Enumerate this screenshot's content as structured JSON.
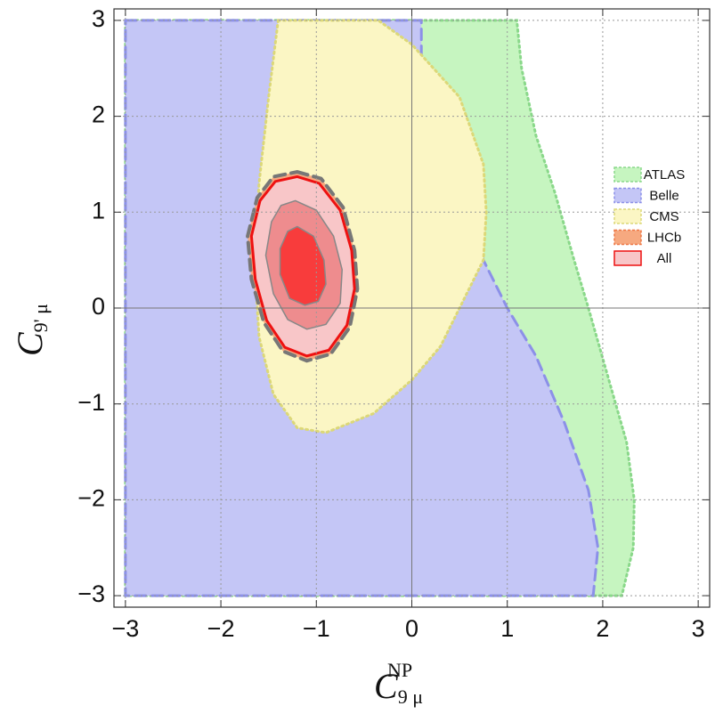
{
  "chart_data": {
    "type": "contour",
    "xlabel": {
      "main": "C",
      "sub": "9 μ",
      "sup": "NP"
    },
    "ylabel": {
      "main": "C",
      "sub": "9' μ"
    },
    "xlim": [
      -3.12,
      3.12
    ],
    "ylim": [
      -3.12,
      3.12
    ],
    "xticks": [
      {
        "value": -3,
        "label": "−3"
      },
      {
        "value": -2,
        "label": "−2"
      },
      {
        "value": -1,
        "label": "−1"
      },
      0,
      1,
      2,
      3
    ],
    "yticks": [
      {
        "value": -3,
        "label": "−3"
      },
      {
        "value": -2,
        "label": "−2"
      },
      {
        "value": -1,
        "label": "−1"
      },
      0,
      1,
      2,
      3
    ],
    "grid": true,
    "legend": "right",
    "series": [
      {
        "name": "ATLAS",
        "color": "#c6f5c0",
        "edge_color": "#8ad88a",
        "dash": "dotted",
        "x": [
          -3,
          1.1,
          1.15,
          1.3,
          1.5,
          1.7,
          1.85,
          2.05,
          2.25,
          2.33,
          2.32,
          2.2,
          -3
        ],
        "y": [
          3,
          3,
          2.5,
          1.8,
          1.2,
          0.5,
          0,
          -0.7,
          -1.4,
          -2,
          -2.5,
          -3,
          -3
        ]
      },
      {
        "name": "Belle",
        "color": "#c4c6f6",
        "edge_color": "#8c90e8",
        "dash": "dashed",
        "x": [
          -3,
          0.1,
          0.1,
          0.3,
          0.5,
          0.75,
          1,
          1.3,
          1.6,
          1.85,
          1.95,
          1.9,
          -3
        ],
        "y": [
          3,
          3,
          2.4,
          1.8,
          1.2,
          0.5,
          0,
          -0.5,
          -1.2,
          -1.9,
          -2.5,
          -3,
          -3
        ]
      },
      {
        "name": "CMS",
        "color": "#fbf6c4",
        "edge_color": "#dcd878",
        "dash": "dotted",
        "x": [
          -1.4,
          -0.35,
          0,
          0.5,
          0.75,
          0.78,
          0.75,
          0.55,
          0.3,
          0,
          -0.4,
          -0.9,
          -1.2,
          -1.45,
          -1.6,
          -1.65,
          -1.6,
          -1.5
        ],
        "y": [
          3,
          3,
          2.75,
          2.2,
          1.5,
          1,
          0.5,
          0.1,
          -0.4,
          -0.75,
          -1.1,
          -1.3,
          -1.25,
          -0.9,
          -0.3,
          0.5,
          1.3,
          2.2
        ]
      },
      {
        "name": "LHCb",
        "color": "#f6a980",
        "edge_color": "#777777",
        "dash": "dashed",
        "x": [
          -1.2,
          -0.95,
          -0.72,
          -0.6,
          -0.57,
          -0.65,
          -0.85,
          -1.1,
          -1.35,
          -1.55,
          -1.68,
          -1.72,
          -1.62,
          -1.45
        ],
        "y": [
          1.42,
          1.35,
          1.05,
          0.6,
          0.2,
          -0.2,
          -0.48,
          -0.55,
          -0.45,
          -0.15,
          0.3,
          0.75,
          1.15,
          1.37
        ]
      },
      {
        "name": "All",
        "color": "#f8c6c8",
        "edge_color": "#ee1111",
        "dash": "solid",
        "levels": [
          {
            "color": "#f8c6c8",
            "edge_color": "#ee1111",
            "x": [
              -1.2,
              -0.97,
              -0.75,
              -0.63,
              -0.6,
              -0.68,
              -0.87,
              -1.1,
              -1.33,
              -1.52,
              -1.64,
              -1.68,
              -1.59,
              -1.43
            ],
            "y": [
              1.37,
              1.3,
              1.02,
              0.6,
              0.2,
              -0.18,
              -0.44,
              -0.5,
              -0.41,
              -0.13,
              0.3,
              0.75,
              1.12,
              1.32
            ]
          },
          {
            "color": "#ee8c8e",
            "edge_color": "#888888",
            "x": [
              -1.22,
              -1.0,
              -0.82,
              -0.73,
              -0.75,
              -0.9,
              -1.1,
              -1.3,
              -1.45,
              -1.53,
              -1.47,
              -1.37
            ],
            "y": [
              1.12,
              1.02,
              0.75,
              0.4,
              0.05,
              -0.17,
              -0.22,
              -0.12,
              0.15,
              0.55,
              0.9,
              1.07
            ]
          },
          {
            "color": "#f83c3c",
            "edge_color": "#888888",
            "x": [
              -1.2,
              -1.03,
              -0.92,
              -0.9,
              -0.98,
              -1.12,
              -1.28,
              -1.38,
              -1.38,
              -1.3
            ],
            "y": [
              0.85,
              0.75,
              0.5,
              0.25,
              0.07,
              0.03,
              0.1,
              0.35,
              0.62,
              0.8
            ]
          }
        ]
      }
    ]
  }
}
